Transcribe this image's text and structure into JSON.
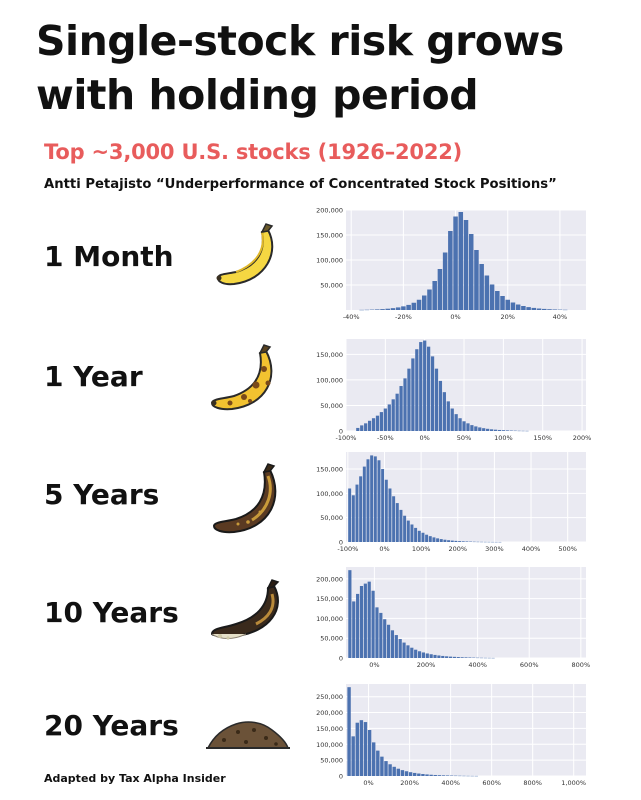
{
  "title_lines": [
    "Single-stock risk grows",
    "with holding period"
  ],
  "subtitle": "Top ~3,000 U.S. stocks (1926–2022)",
  "source": "Antti Petajisto “Underperformance of Concentrated Stock Positions”",
  "credit": "Adapted by Tax Alpha Insider",
  "rows": [
    {
      "label": "1 Month",
      "icon": "fresh-banana-icon"
    },
    {
      "label": "1 Year",
      "icon": "spotted-banana-icon"
    },
    {
      "label": "5 Years",
      "icon": "brown-banana-icon"
    },
    {
      "label": "10 Years",
      "icon": "rotten-banana-icon"
    },
    {
      "label": "20 Years",
      "icon": "compost-pile-icon"
    }
  ],
  "colors": {
    "bar": "#4c72b0",
    "plot_bg": "#eaeaf2",
    "subtitle": "#e85c5c"
  },
  "chart_data": [
    {
      "type": "bar",
      "xlim": [
        -42,
        50
      ],
      "ylim": [
        0,
        200000
      ],
      "yticks": [
        {
          "v": 50000,
          "label": "50,000"
        },
        {
          "v": 100000,
          "label": "100,000"
        },
        {
          "v": 150000,
          "label": "150,000"
        },
        {
          "v": 200000,
          "label": "200,000"
        }
      ],
      "xticks": [
        {
          "v": -40,
          "label": "-40%"
        },
        {
          "v": -20,
          "label": "-20%"
        },
        {
          "v": 0,
          "label": "0%"
        },
        {
          "v": 20,
          "label": "20%"
        },
        {
          "v": 40,
          "label": "40%"
        }
      ],
      "bins": [
        {
          "x": -36,
          "y": 300
        },
        {
          "x": -34,
          "y": 500
        },
        {
          "x": -32,
          "y": 800
        },
        {
          "x": -30,
          "y": 1200
        },
        {
          "x": -28,
          "y": 1800
        },
        {
          "x": -26,
          "y": 2600
        },
        {
          "x": -24,
          "y": 3700
        },
        {
          "x": -22,
          "y": 5200
        },
        {
          "x": -20,
          "y": 7300
        },
        {
          "x": -18,
          "y": 10200
        },
        {
          "x": -16,
          "y": 14500
        },
        {
          "x": -14,
          "y": 20500
        },
        {
          "x": -12,
          "y": 29000
        },
        {
          "x": -10,
          "y": 41000
        },
        {
          "x": -8,
          "y": 58000
        },
        {
          "x": -6,
          "y": 82000
        },
        {
          "x": -4,
          "y": 115000
        },
        {
          "x": -2,
          "y": 158000
        },
        {
          "x": 0,
          "y": 187000
        },
        {
          "x": 2,
          "y": 196000
        },
        {
          "x": 4,
          "y": 180000
        },
        {
          "x": 6,
          "y": 152000
        },
        {
          "x": 8,
          "y": 120000
        },
        {
          "x": 10,
          "y": 92000
        },
        {
          "x": 12,
          "y": 69000
        },
        {
          "x": 14,
          "y": 51000
        },
        {
          "x": 16,
          "y": 38000
        },
        {
          "x": 18,
          "y": 28000
        },
        {
          "x": 20,
          "y": 20500
        },
        {
          "x": 22,
          "y": 15000
        },
        {
          "x": 24,
          "y": 11000
        },
        {
          "x": 26,
          "y": 8000
        },
        {
          "x": 28,
          "y": 5800
        },
        {
          "x": 30,
          "y": 4200
        },
        {
          "x": 32,
          "y": 3000
        },
        {
          "x": 34,
          "y": 2200
        },
        {
          "x": 36,
          "y": 1600
        },
        {
          "x": 38,
          "y": 1100
        },
        {
          "x": 40,
          "y": 800
        },
        {
          "x": 42,
          "y": 500
        }
      ]
    },
    {
      "type": "bar",
      "xlim": [
        -100,
        205
      ],
      "ylim": [
        0,
        180000
      ],
      "yticks": [
        {
          "v": 0,
          "label": "0"
        },
        {
          "v": 50000,
          "label": "50,000"
        },
        {
          "v": 100000,
          "label": "100,000"
        },
        {
          "v": 150000,
          "label": "150,000"
        }
      ],
      "xticks": [
        {
          "v": -100,
          "label": "-100%"
        },
        {
          "v": -50,
          "label": "-50%"
        },
        {
          "v": 0,
          "label": "0%"
        },
        {
          "v": 50,
          "label": "50%"
        },
        {
          "v": 100,
          "label": "100%"
        },
        {
          "v": 150,
          "label": "150%"
        },
        {
          "v": 200,
          "label": "200%"
        }
      ],
      "bins": [
        {
          "x": -85,
          "y": 6000
        },
        {
          "x": -80,
          "y": 11000
        },
        {
          "x": -75,
          "y": 15000
        },
        {
          "x": -70,
          "y": 20000
        },
        {
          "x": -65,
          "y": 25000
        },
        {
          "x": -60,
          "y": 30000
        },
        {
          "x": -55,
          "y": 37000
        },
        {
          "x": -50,
          "y": 44000
        },
        {
          "x": -45,
          "y": 52000
        },
        {
          "x": -40,
          "y": 62000
        },
        {
          "x": -35,
          "y": 73000
        },
        {
          "x": -30,
          "y": 88000
        },
        {
          "x": -25,
          "y": 103000
        },
        {
          "x": -20,
          "y": 122000
        },
        {
          "x": -15,
          "y": 142000
        },
        {
          "x": -10,
          "y": 160000
        },
        {
          "x": -5,
          "y": 174000
        },
        {
          "x": 0,
          "y": 177000
        },
        {
          "x": 5,
          "y": 165000
        },
        {
          "x": 10,
          "y": 146000
        },
        {
          "x": 15,
          "y": 122000
        },
        {
          "x": 20,
          "y": 98000
        },
        {
          "x": 25,
          "y": 76000
        },
        {
          "x": 30,
          "y": 58000
        },
        {
          "x": 35,
          "y": 44000
        },
        {
          "x": 40,
          "y": 33000
        },
        {
          "x": 45,
          "y": 25000
        },
        {
          "x": 50,
          "y": 19000
        },
        {
          "x": 55,
          "y": 15000
        },
        {
          "x": 60,
          "y": 11500
        },
        {
          "x": 65,
          "y": 9000
        },
        {
          "x": 70,
          "y": 7000
        },
        {
          "x": 75,
          "y": 5500
        },
        {
          "x": 80,
          "y": 4300
        },
        {
          "x": 85,
          "y": 3300
        },
        {
          "x": 90,
          "y": 2600
        },
        {
          "x": 95,
          "y": 2000
        },
        {
          "x": 100,
          "y": 1600
        },
        {
          "x": 105,
          "y": 1200
        },
        {
          "x": 110,
          "y": 900
        },
        {
          "x": 115,
          "y": 700
        },
        {
          "x": 120,
          "y": 500
        },
        {
          "x": 125,
          "y": 400
        },
        {
          "x": 130,
          "y": 300
        }
      ]
    },
    {
      "type": "bar",
      "xlim": [
        -105,
        550
      ],
      "ylim": [
        0,
        185000
      ],
      "yticks": [
        {
          "v": 0,
          "label": "0"
        },
        {
          "v": 50000,
          "label": "50,000"
        },
        {
          "v": 100000,
          "label": "100,000"
        },
        {
          "v": 150000,
          "label": "150,000"
        }
      ],
      "xticks": [
        {
          "v": -100,
          "label": "-100%"
        },
        {
          "v": 0,
          "label": "0%"
        },
        {
          "v": 100,
          "label": "100%"
        },
        {
          "v": 200,
          "label": "200%"
        },
        {
          "v": 300,
          "label": "300%"
        },
        {
          "v": 400,
          "label": "400%"
        },
        {
          "v": 500,
          "label": "500%"
        }
      ],
      "bins": [
        {
          "x": -95,
          "y": 110000
        },
        {
          "x": -85,
          "y": 96000
        },
        {
          "x": -75,
          "y": 118000
        },
        {
          "x": -65,
          "y": 135000
        },
        {
          "x": -55,
          "y": 155000
        },
        {
          "x": -45,
          "y": 170000
        },
        {
          "x": -35,
          "y": 178000
        },
        {
          "x": -25,
          "y": 176000
        },
        {
          "x": -15,
          "y": 168000
        },
        {
          "x": -5,
          "y": 150000
        },
        {
          "x": 5,
          "y": 128000
        },
        {
          "x": 15,
          "y": 110000
        },
        {
          "x": 25,
          "y": 94000
        },
        {
          "x": 35,
          "y": 80000
        },
        {
          "x": 45,
          "y": 66000
        },
        {
          "x": 55,
          "y": 54000
        },
        {
          "x": 65,
          "y": 44000
        },
        {
          "x": 75,
          "y": 36000
        },
        {
          "x": 85,
          "y": 29000
        },
        {
          "x": 95,
          "y": 23000
        },
        {
          "x": 105,
          "y": 19000
        },
        {
          "x": 115,
          "y": 15000
        },
        {
          "x": 125,
          "y": 12000
        },
        {
          "x": 135,
          "y": 9500
        },
        {
          "x": 145,
          "y": 7500
        },
        {
          "x": 155,
          "y": 6000
        },
        {
          "x": 165,
          "y": 4700
        },
        {
          "x": 175,
          "y": 3700
        },
        {
          "x": 185,
          "y": 2900
        },
        {
          "x": 195,
          "y": 2300
        },
        {
          "x": 205,
          "y": 1800
        },
        {
          "x": 215,
          "y": 1400
        },
        {
          "x": 225,
          "y": 1100
        },
        {
          "x": 235,
          "y": 850
        },
        {
          "x": 245,
          "y": 650
        },
        {
          "x": 255,
          "y": 500
        },
        {
          "x": 265,
          "y": 400
        },
        {
          "x": 275,
          "y": 300
        },
        {
          "x": 285,
          "y": 250
        },
        {
          "x": 295,
          "y": 200
        },
        {
          "x": 305,
          "y": 150
        },
        {
          "x": 315,
          "y": 120
        }
      ]
    },
    {
      "type": "bar",
      "xlim": [
        -110,
        820
      ],
      "ylim": [
        0,
        230000
      ],
      "yticks": [
        {
          "v": 0,
          "label": "0"
        },
        {
          "v": 50000,
          "label": "50,000"
        },
        {
          "v": 100000,
          "label": "100,000"
        },
        {
          "v": 150000,
          "label": "150,000"
        },
        {
          "v": 200000,
          "label": "200,000"
        }
      ],
      "xticks": [
        {
          "v": 0,
          "label": "0%"
        },
        {
          "v": 200,
          "label": "200%"
        },
        {
          "v": 400,
          "label": "400%"
        },
        {
          "v": 600,
          "label": "600%"
        },
        {
          "v": 800,
          "label": "800%"
        }
      ],
      "bins": [
        {
          "x": -95,
          "y": 222000
        },
        {
          "x": -80,
          "y": 143000
        },
        {
          "x": -65,
          "y": 162000
        },
        {
          "x": -50,
          "y": 182000
        },
        {
          "x": -35,
          "y": 188000
        },
        {
          "x": -20,
          "y": 193000
        },
        {
          "x": -5,
          "y": 170000
        },
        {
          "x": 10,
          "y": 128000
        },
        {
          "x": 25,
          "y": 114000
        },
        {
          "x": 40,
          "y": 98000
        },
        {
          "x": 55,
          "y": 84000
        },
        {
          "x": 70,
          "y": 70000
        },
        {
          "x": 85,
          "y": 58000
        },
        {
          "x": 100,
          "y": 48000
        },
        {
          "x": 115,
          "y": 39000
        },
        {
          "x": 130,
          "y": 32000
        },
        {
          "x": 145,
          "y": 26000
        },
        {
          "x": 160,
          "y": 21000
        },
        {
          "x": 175,
          "y": 17000
        },
        {
          "x": 190,
          "y": 14000
        },
        {
          "x": 205,
          "y": 11500
        },
        {
          "x": 220,
          "y": 9500
        },
        {
          "x": 235,
          "y": 7800
        },
        {
          "x": 250,
          "y": 6400
        },
        {
          "x": 265,
          "y": 5200
        },
        {
          "x": 280,
          "y": 4300
        },
        {
          "x": 295,
          "y": 3500
        },
        {
          "x": 310,
          "y": 2900
        },
        {
          "x": 325,
          "y": 2400
        },
        {
          "x": 340,
          "y": 1900
        },
        {
          "x": 355,
          "y": 1600
        },
        {
          "x": 370,
          "y": 1300
        },
        {
          "x": 385,
          "y": 1000
        },
        {
          "x": 400,
          "y": 800
        },
        {
          "x": 415,
          "y": 600
        },
        {
          "x": 430,
          "y": 450
        },
        {
          "x": 445,
          "y": 350
        },
        {
          "x": 460,
          "y": 250
        }
      ]
    },
    {
      "type": "bar",
      "xlim": [
        -110,
        1060
      ],
      "ylim": [
        0,
        290000
      ],
      "yticks": [
        {
          "v": 0,
          "label": "0"
        },
        {
          "v": 50000,
          "label": "50,000"
        },
        {
          "v": 100000,
          "label": "100,000"
        },
        {
          "v": 150000,
          "label": "150,000"
        },
        {
          "v": 200000,
          "label": "200,000"
        },
        {
          "v": 250000,
          "label": "250,000"
        }
      ],
      "xticks": [
        {
          "v": 0,
          "label": "0%"
        },
        {
          "v": 200,
          "label": "200%"
        },
        {
          "v": 400,
          "label": "400%"
        },
        {
          "v": 600,
          "label": "600%"
        },
        {
          "v": 800,
          "label": "800%"
        },
        {
          "v": 1000,
          "label": "1,000%"
        }
      ],
      "bins": [
        {
          "x": -95,
          "y": 280000
        },
        {
          "x": -75,
          "y": 125000
        },
        {
          "x": -55,
          "y": 168000
        },
        {
          "x": -35,
          "y": 176000
        },
        {
          "x": -15,
          "y": 170000
        },
        {
          "x": 5,
          "y": 145000
        },
        {
          "x": 25,
          "y": 106000
        },
        {
          "x": 45,
          "y": 80000
        },
        {
          "x": 65,
          "y": 61000
        },
        {
          "x": 85,
          "y": 47000
        },
        {
          "x": 105,
          "y": 37000
        },
        {
          "x": 125,
          "y": 29000
        },
        {
          "x": 145,
          "y": 23000
        },
        {
          "x": 165,
          "y": 18500
        },
        {
          "x": 185,
          "y": 15000
        },
        {
          "x": 205,
          "y": 12000
        },
        {
          "x": 225,
          "y": 9700
        },
        {
          "x": 245,
          "y": 7800
        },
        {
          "x": 265,
          "y": 6300
        },
        {
          "x": 285,
          "y": 5000
        },
        {
          "x": 305,
          "y": 4000
        },
        {
          "x": 325,
          "y": 3200
        },
        {
          "x": 345,
          "y": 2600
        },
        {
          "x": 365,
          "y": 2100
        },
        {
          "x": 385,
          "y": 1700
        },
        {
          "x": 405,
          "y": 1400
        },
        {
          "x": 425,
          "y": 1100
        },
        {
          "x": 445,
          "y": 900
        },
        {
          "x": 465,
          "y": 700
        },
        {
          "x": 485,
          "y": 550
        },
        {
          "x": 505,
          "y": 430
        },
        {
          "x": 525,
          "y": 340
        }
      ]
    }
  ]
}
